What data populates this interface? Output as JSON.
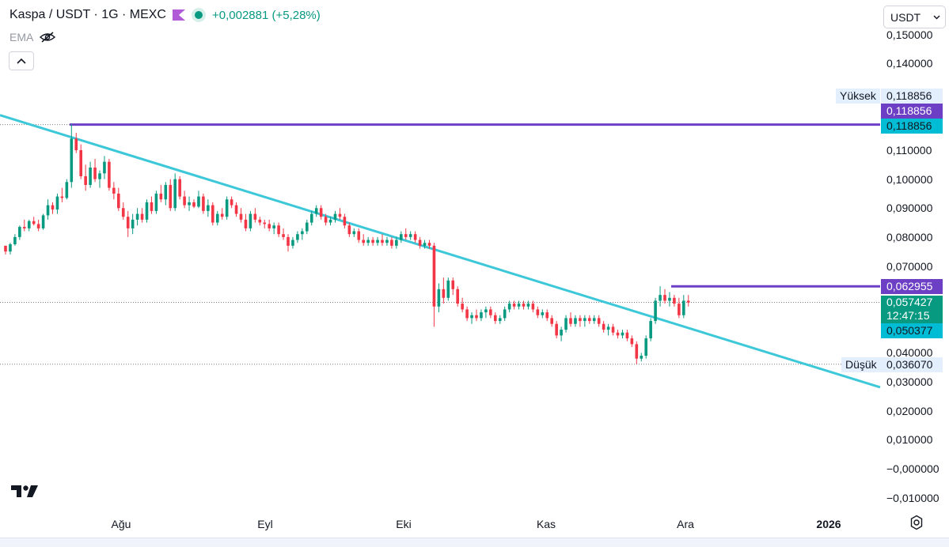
{
  "header": {
    "title": "Kaspa / USDT · 1G · MEXC",
    "change": "+0,002881 (+5,28%)",
    "indicator": "EMA",
    "currency": "USDT"
  },
  "colors": {
    "up": "#089981",
    "down": "#f23645",
    "trendline": "#3dc8d9",
    "level": "#6c3fc4",
    "text": "#131722"
  },
  "price_labels": {
    "high_tag": "Yüksek",
    "high_value": "0,118856",
    "level_value_1": "0,118856",
    "level_value_2": "0,118856",
    "level_value_3": "0,062955",
    "last_price": "0,057427",
    "countdown": "12:47:15",
    "trend_value": "0,050377",
    "low_tag": "Düşük",
    "low_value": "0,036070"
  },
  "chart_data": {
    "type": "candlestick",
    "title": "Kaspa / USDT · 1G · MEXC",
    "y_ticks": [
      "0,150000",
      "0,140000",
      "0,110000",
      "0,100000",
      "0,090000",
      "0,080000",
      "0,070000",
      "0,040000",
      "0,030000",
      "0,020000",
      "0,010000",
      "−0,000000",
      "−0,010000"
    ],
    "y_tick_values": [
      0.15,
      0.14,
      0.11,
      0.1,
      0.09,
      0.08,
      0.07,
      0.04,
      0.03,
      0.02,
      0.01,
      0.0,
      -0.01
    ],
    "x_ticks": [
      "Ağu",
      "Eyl",
      "Eki",
      "Kas",
      "Ara",
      "2026"
    ],
    "ylim": [
      -0.0125,
      0.153
    ],
    "candles": [
      [
        0.077,
        0.077,
        0.074,
        0.075
      ],
      [
        0.075,
        0.078,
        0.074,
        0.0775
      ],
      [
        0.0775,
        0.081,
        0.077,
        0.08
      ],
      [
        0.08,
        0.084,
        0.079,
        0.0835
      ],
      [
        0.0835,
        0.086,
        0.082,
        0.083
      ],
      [
        0.083,
        0.086,
        0.082,
        0.0855
      ],
      [
        0.0855,
        0.087,
        0.084,
        0.0845
      ],
      [
        0.0845,
        0.086,
        0.082,
        0.083
      ],
      [
        0.083,
        0.088,
        0.0825,
        0.0875
      ],
      [
        0.0875,
        0.093,
        0.086,
        0.091
      ],
      [
        0.091,
        0.092,
        0.088,
        0.0895
      ],
      [
        0.0895,
        0.095,
        0.088,
        0.094
      ],
      [
        0.094,
        0.097,
        0.092,
        0.0935
      ],
      [
        0.0935,
        0.1,
        0.093,
        0.099
      ],
      [
        0.099,
        0.119,
        0.097,
        0.114
      ],
      [
        0.114,
        0.116,
        0.109,
        0.11
      ],
      [
        0.11,
        0.112,
        0.1,
        0.101
      ],
      [
        0.101,
        0.105,
        0.096,
        0.098
      ],
      [
        0.098,
        0.106,
        0.097,
        0.104
      ],
      [
        0.104,
        0.107,
        0.099,
        0.1
      ],
      [
        0.1,
        0.103,
        0.097,
        0.102
      ],
      [
        0.102,
        0.108,
        0.1,
        0.106
      ],
      [
        0.106,
        0.107,
        0.096,
        0.097
      ],
      [
        0.097,
        0.099,
        0.093,
        0.095
      ],
      [
        0.095,
        0.097,
        0.089,
        0.09
      ],
      [
        0.09,
        0.092,
        0.086,
        0.087
      ],
      [
        0.087,
        0.089,
        0.08,
        0.083
      ],
      [
        0.083,
        0.088,
        0.081,
        0.086
      ],
      [
        0.086,
        0.09,
        0.084,
        0.088
      ],
      [
        0.088,
        0.09,
        0.085,
        0.086
      ],
      [
        0.086,
        0.093,
        0.085,
        0.092
      ],
      [
        0.092,
        0.094,
        0.088,
        0.089
      ],
      [
        0.089,
        0.096,
        0.088,
        0.095
      ],
      [
        0.095,
        0.098,
        0.092,
        0.093
      ],
      [
        0.093,
        0.099,
        0.091,
        0.098
      ],
      [
        0.098,
        0.1,
        0.089,
        0.09
      ],
      [
        0.09,
        0.102,
        0.089,
        0.1
      ],
      [
        0.1,
        0.101,
        0.093,
        0.094
      ],
      [
        0.094,
        0.096,
        0.09,
        0.091
      ],
      [
        0.091,
        0.094,
        0.089,
        0.092
      ],
      [
        0.092,
        0.093,
        0.09,
        0.0905
      ],
      [
        0.0905,
        0.096,
        0.09,
        0.094
      ],
      [
        0.094,
        0.095,
        0.088,
        0.089
      ],
      [
        0.089,
        0.093,
        0.087,
        0.091
      ],
      [
        0.091,
        0.092,
        0.084,
        0.085
      ],
      [
        0.085,
        0.089,
        0.084,
        0.088
      ],
      [
        0.088,
        0.09,
        0.086,
        0.087
      ],
      [
        0.087,
        0.094,
        0.086,
        0.093
      ],
      [
        0.093,
        0.094,
        0.09,
        0.091
      ],
      [
        0.091,
        0.092,
        0.087,
        0.088
      ],
      [
        0.088,
        0.09,
        0.085,
        0.086
      ],
      [
        0.086,
        0.088,
        0.082,
        0.083
      ],
      [
        0.083,
        0.089,
        0.082,
        0.088
      ],
      [
        0.088,
        0.09,
        0.085,
        0.086
      ],
      [
        0.086,
        0.087,
        0.084,
        0.085
      ],
      [
        0.085,
        0.086,
        0.083,
        0.0845
      ],
      [
        0.0845,
        0.086,
        0.082,
        0.083
      ],
      [
        0.083,
        0.085,
        0.081,
        0.084
      ],
      [
        0.084,
        0.085,
        0.08,
        0.081
      ],
      [
        0.081,
        0.083,
        0.079,
        0.08
      ],
      [
        0.08,
        0.081,
        0.075,
        0.077
      ],
      [
        0.077,
        0.08,
        0.076,
        0.079
      ],
      [
        0.079,
        0.082,
        0.078,
        0.081
      ],
      [
        0.081,
        0.083,
        0.079,
        0.082
      ],
      [
        0.082,
        0.086,
        0.081,
        0.085
      ],
      [
        0.085,
        0.089,
        0.084,
        0.088
      ],
      [
        0.088,
        0.091,
        0.087,
        0.09
      ],
      [
        0.09,
        0.091,
        0.086,
        0.087
      ],
      [
        0.087,
        0.088,
        0.084,
        0.085
      ],
      [
        0.085,
        0.087,
        0.084,
        0.086
      ],
      [
        0.086,
        0.089,
        0.085,
        0.088
      ],
      [
        0.088,
        0.09,
        0.086,
        0.087
      ],
      [
        0.087,
        0.088,
        0.083,
        0.084
      ],
      [
        0.084,
        0.085,
        0.08,
        0.081
      ],
      [
        0.081,
        0.083,
        0.08,
        0.082
      ],
      [
        0.082,
        0.083,
        0.078,
        0.079
      ],
      [
        0.079,
        0.081,
        0.077,
        0.078
      ],
      [
        0.078,
        0.08,
        0.077,
        0.079
      ],
      [
        0.079,
        0.08,
        0.077,
        0.078
      ],
      [
        0.078,
        0.08,
        0.077,
        0.079
      ],
      [
        0.079,
        0.081,
        0.077,
        0.078
      ],
      [
        0.078,
        0.08,
        0.077,
        0.079
      ],
      [
        0.079,
        0.08,
        0.076,
        0.077
      ],
      [
        0.077,
        0.08,
        0.076,
        0.079
      ],
      [
        0.079,
        0.082,
        0.078,
        0.081
      ],
      [
        0.081,
        0.083,
        0.079,
        0.08
      ],
      [
        0.08,
        0.082,
        0.079,
        0.081
      ],
      [
        0.081,
        0.082,
        0.078,
        0.079
      ],
      [
        0.079,
        0.08,
        0.076,
        0.077
      ],
      [
        0.077,
        0.079,
        0.076,
        0.078
      ],
      [
        0.078,
        0.079,
        0.076,
        0.077
      ],
      [
        0.077,
        0.078,
        0.049,
        0.056
      ],
      [
        0.056,
        0.064,
        0.054,
        0.062
      ],
      [
        0.062,
        0.066,
        0.057,
        0.059
      ],
      [
        0.059,
        0.066,
        0.058,
        0.065
      ],
      [
        0.065,
        0.066,
        0.06,
        0.062
      ],
      [
        0.062,
        0.063,
        0.056,
        0.057
      ],
      [
        0.057,
        0.059,
        0.054,
        0.055
      ],
      [
        0.055,
        0.056,
        0.051,
        0.052
      ],
      [
        0.052,
        0.054,
        0.05,
        0.053
      ],
      [
        0.053,
        0.055,
        0.051,
        0.052
      ],
      [
        0.052,
        0.055,
        0.051,
        0.054
      ],
      [
        0.054,
        0.056,
        0.052,
        0.055
      ],
      [
        0.055,
        0.056,
        0.052,
        0.053
      ],
      [
        0.053,
        0.054,
        0.05,
        0.051
      ],
      [
        0.051,
        0.053,
        0.05,
        0.052
      ],
      [
        0.052,
        0.056,
        0.051,
        0.055
      ],
      [
        0.055,
        0.058,
        0.054,
        0.057
      ],
      [
        0.057,
        0.058,
        0.055,
        0.056
      ],
      [
        0.056,
        0.058,
        0.055,
        0.057
      ],
      [
        0.057,
        0.058,
        0.055,
        0.056
      ],
      [
        0.056,
        0.058,
        0.055,
        0.057
      ],
      [
        0.057,
        0.058,
        0.054,
        0.055
      ],
      [
        0.055,
        0.056,
        0.052,
        0.053
      ],
      [
        0.053,
        0.055,
        0.052,
        0.054
      ],
      [
        0.054,
        0.055,
        0.051,
        0.052
      ],
      [
        0.052,
        0.053,
        0.049,
        0.05
      ],
      [
        0.05,
        0.051,
        0.045,
        0.046
      ],
      [
        0.046,
        0.049,
        0.044,
        0.048
      ],
      [
        0.048,
        0.053,
        0.047,
        0.052
      ],
      [
        0.052,
        0.054,
        0.049,
        0.05
      ],
      [
        0.05,
        0.053,
        0.049,
        0.052
      ],
      [
        0.052,
        0.053,
        0.049,
        0.051
      ],
      [
        0.051,
        0.053,
        0.049,
        0.052
      ],
      [
        0.052,
        0.053,
        0.05,
        0.051
      ],
      [
        0.051,
        0.053,
        0.05,
        0.052
      ],
      [
        0.052,
        0.053,
        0.049,
        0.05
      ],
      [
        0.05,
        0.051,
        0.047,
        0.048
      ],
      [
        0.048,
        0.05,
        0.046,
        0.049
      ],
      [
        0.049,
        0.05,
        0.046,
        0.047
      ],
      [
        0.047,
        0.048,
        0.045,
        0.046
      ],
      [
        0.046,
        0.048,
        0.045,
        0.047
      ],
      [
        0.047,
        0.048,
        0.044,
        0.045
      ],
      [
        0.045,
        0.046,
        0.042,
        0.043
      ],
      [
        0.043,
        0.044,
        0.0361,
        0.038
      ],
      [
        0.038,
        0.04,
        0.037,
        0.039
      ],
      [
        0.039,
        0.046,
        0.038,
        0.045
      ],
      [
        0.045,
        0.052,
        0.044,
        0.051
      ],
      [
        0.051,
        0.059,
        0.05,
        0.058
      ],
      [
        0.058,
        0.063,
        0.056,
        0.06
      ],
      [
        0.06,
        0.062,
        0.057,
        0.058
      ],
      [
        0.058,
        0.061,
        0.056,
        0.059
      ],
      [
        0.059,
        0.06,
        0.056,
        0.057
      ],
      [
        0.057,
        0.059,
        0.052,
        0.053
      ],
      [
        0.053,
        0.06,
        0.052,
        0.058
      ],
      [
        0.058,
        0.06,
        0.056,
        0.0574
      ]
    ],
    "horizontal_levels": [
      {
        "price": 0.118856,
        "color": "#6c3fc4"
      },
      {
        "price": 0.062955,
        "color": "#6c3fc4"
      }
    ],
    "trendline": {
      "from_price": 0.1221,
      "to_price": 0.0281
    },
    "dotted_levels": [
      0.118856,
      0.057427,
      0.03607
    ]
  }
}
